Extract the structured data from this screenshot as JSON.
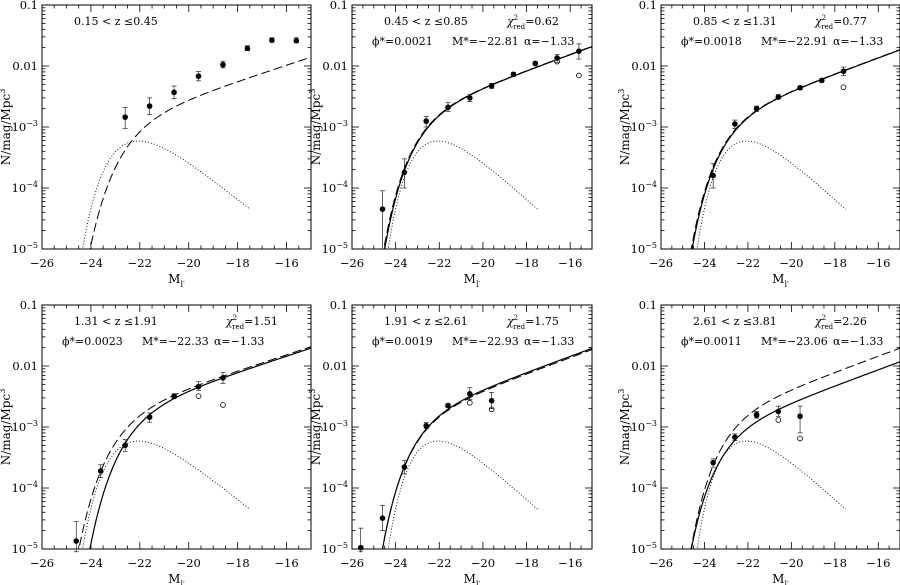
{
  "chart_data": [
    {
      "type": "scatter",
      "panel_label": "0.15 < z ≤0.45",
      "chi2": "",
      "params": "",
      "xlabel": "M_l'",
      "ylabel": "N/mag/Mpc^3",
      "xlim": [
        -26,
        -15
      ],
      "ylim_log10": [
        -5,
        -1
      ],
      "yscale": "log",
      "xticks": [
        "-26",
        "-24",
        "-22",
        "-20",
        "-18",
        "-16"
      ],
      "yticks": [
        "10^-5",
        "10^-4",
        "10^-3",
        "0.01",
        "0.1"
      ],
      "points_filled": [
        {
          "x": -22.6,
          "y": 0.00145,
          "lo": 0.00095,
          "hi": 0.0021
        },
        {
          "x": -21.6,
          "y": 0.0022,
          "lo": 0.0016,
          "hi": 0.003
        },
        {
          "x": -20.6,
          "y": 0.0037,
          "lo": 0.0029,
          "hi": 0.0047
        },
        {
          "x": -19.6,
          "y": 0.0068,
          "lo": 0.0057,
          "hi": 0.0081
        },
        {
          "x": -18.6,
          "y": 0.0105,
          "lo": 0.0093,
          "hi": 0.012
        },
        {
          "x": -17.6,
          "y": 0.0195,
          "lo": 0.0178,
          "hi": 0.0215
        },
        {
          "x": -16.6,
          "y": 0.0265,
          "lo": 0.0245,
          "hi": 0.029
        },
        {
          "x": -15.6,
          "y": 0.026,
          "lo": 0.024,
          "hi": 0.029
        }
      ],
      "points_open": [],
      "curves": {
        "solid": false,
        "dashed": [
          {
            "M": -22.4,
            "phi": 0.0016,
            "alpha": -1.33
          }
        ],
        "dotted_mstar": -22.3,
        "dotted_phi": 0.0017
      }
    },
    {
      "type": "scatter",
      "panel_label": "0.45 < z ≤0.85",
      "chi2": "0.62",
      "params": [
        "0.0021",
        "-22.81",
        "-1.33"
      ],
      "xlabel": "M_l'",
      "ylabel": "N/mag/Mpc^3",
      "xlim": [
        -26,
        -15
      ],
      "ylim_log10": [
        -5,
        -1
      ],
      "yscale": "log",
      "xticks": [
        "-26",
        "-24",
        "-22",
        "-20",
        "-18",
        "-16"
      ],
      "yticks": [
        "10^-5",
        "10^-4",
        "10^-3",
        "0.01",
        "0.1"
      ],
      "points_filled": [
        {
          "x": -24.6,
          "y": 4.5e-05,
          "lo": 1e-05,
          "hi": 9e-05
        },
        {
          "x": -23.6,
          "y": 0.00018,
          "lo": 0.0001,
          "hi": 0.0003
        },
        {
          "x": -22.6,
          "y": 0.00125,
          "lo": 0.001,
          "hi": 0.0015
        },
        {
          "x": -21.6,
          "y": 0.0021,
          "lo": 0.0018,
          "hi": 0.0025
        },
        {
          "x": -20.6,
          "y": 0.003,
          "lo": 0.0026,
          "hi": 0.0034
        },
        {
          "x": -19.6,
          "y": 0.0047,
          "lo": 0.0043,
          "hi": 0.0052
        },
        {
          "x": -18.6,
          "y": 0.0073,
          "lo": 0.0068,
          "hi": 0.0078
        },
        {
          "x": -17.6,
          "y": 0.011,
          "lo": 0.0103,
          "hi": 0.0118
        },
        {
          "x": -16.6,
          "y": 0.0135,
          "lo": 0.0115,
          "hi": 0.0155
        },
        {
          "x": -15.6,
          "y": 0.0175,
          "lo": 0.013,
          "hi": 0.023
        }
      ],
      "points_open": [
        {
          "x": -16.6,
          "y": 0.0118
        },
        {
          "x": -15.6,
          "y": 0.007
        }
      ],
      "curves": {
        "solid": true,
        "dashed": [
          {
            "M": -22.85,
            "phi": 0.0021,
            "alpha": -1.33
          }
        ],
        "dotted_mstar": -22.3,
        "dotted_phi": 0.0017
      }
    },
    {
      "type": "scatter",
      "panel_label": "0.85 < z ≤1.31",
      "chi2": "0.77",
      "params": [
        "0.0018",
        "-22.91",
        "-1.33"
      ],
      "xlabel": "M_l'",
      "ylabel": "N/mag/Mpc^3",
      "xlim": [
        -26,
        -15
      ],
      "ylim_log10": [
        -5,
        -1
      ],
      "yscale": "log",
      "xticks": [
        "-26",
        "-24",
        "-22",
        "-20",
        "-18",
        "-16"
      ],
      "yticks": [
        "10^-5",
        "10^-4",
        "10^-3",
        "0.01",
        "0.1"
      ],
      "points_filled": [
        {
          "x": -23.6,
          "y": 0.00016,
          "lo": 0.0001,
          "hi": 0.00025
        },
        {
          "x": -22.6,
          "y": 0.00112,
          "lo": 0.00095,
          "hi": 0.0013
        },
        {
          "x": -21.6,
          "y": 0.002,
          "lo": 0.0018,
          "hi": 0.0022
        },
        {
          "x": -20.6,
          "y": 0.0031,
          "lo": 0.0029,
          "hi": 0.0034
        },
        {
          "x": -19.6,
          "y": 0.0044,
          "lo": 0.0041,
          "hi": 0.0047
        },
        {
          "x": -18.6,
          "y": 0.0058,
          "lo": 0.0054,
          "hi": 0.0062
        },
        {
          "x": -17.6,
          "y": 0.0082,
          "lo": 0.007,
          "hi": 0.0096
        }
      ],
      "points_open": [
        {
          "x": -17.6,
          "y": 0.0045
        }
      ],
      "curves": {
        "solid": true,
        "dashed": [
          {
            "M": -22.95,
            "phi": 0.0018,
            "alpha": -1.33
          }
        ],
        "dotted_mstar": -22.3,
        "dotted_phi": 0.0017
      }
    },
    {
      "type": "scatter",
      "panel_label": "1.31 < z ≤1.91",
      "chi2": "1.51",
      "params": [
        "0.0023",
        "-22.33",
        "-1.33"
      ],
      "xlabel": "M_l'",
      "ylabel": "N/mag/Mpc^3",
      "xlim": [
        -26,
        -15
      ],
      "ylim_log10": [
        -5,
        -1
      ],
      "yscale": "log",
      "xticks": [
        "-26",
        "-24",
        "-22",
        "-20",
        "-18",
        "-16"
      ],
      "yticks": [
        "10^-5",
        "10^-4",
        "10^-3",
        "0.01",
        "0.1"
      ],
      "points_filled": [
        {
          "x": -24.6,
          "y": 1.35e-05,
          "lo": 9e-06,
          "hi": 2.8e-05
        },
        {
          "x": -23.6,
          "y": 0.00019,
          "lo": 0.00015,
          "hi": 0.00024
        },
        {
          "x": -22.6,
          "y": 0.0005,
          "lo": 0.0004,
          "hi": 0.00062
        },
        {
          "x": -21.6,
          "y": 0.00145,
          "lo": 0.0012,
          "hi": 0.0017
        },
        {
          "x": -20.6,
          "y": 0.0032,
          "lo": 0.0029,
          "hi": 0.0035
        },
        {
          "x": -19.6,
          "y": 0.0046,
          "lo": 0.004,
          "hi": 0.0055
        },
        {
          "x": -18.6,
          "y": 0.0064,
          "lo": 0.0052,
          "hi": 0.0078
        }
      ],
      "points_open": [
        {
          "x": -19.6,
          "y": 0.0032
        },
        {
          "x": -18.6,
          "y": 0.0023
        }
      ],
      "curves": {
        "solid": true,
        "dashed": [
          {
            "M": -22.8,
            "phi": 0.0021,
            "alpha": -1.33
          }
        ],
        "dotted_mstar": -22.3,
        "dotted_phi": 0.0017
      }
    },
    {
      "type": "scatter",
      "panel_label": "1.91 < z ≤2.61",
      "chi2": "1.75",
      "params": [
        "0.0019",
        "-22.93",
        "-1.33"
      ],
      "xlabel": "M_l'",
      "ylabel": "N/mag/Mpc^3",
      "xlim": [
        -26,
        -15
      ],
      "ylim_log10": [
        -5,
        -1
      ],
      "yscale": "log",
      "xticks": [
        "-26",
        "-24",
        "-22",
        "-20",
        "-18",
        "-16"
      ],
      "yticks": [
        "10^-5",
        "10^-4",
        "10^-3",
        "0.01",
        "0.1"
      ],
      "points_filled": [
        {
          "x": -25.6,
          "y": 1.05e-05,
          "lo": 9e-06,
          "hi": 2.2e-05
        },
        {
          "x": -24.6,
          "y": 3.2e-05,
          "lo": 2e-05,
          "hi": 5.2e-05
        },
        {
          "x": -23.6,
          "y": 0.00022,
          "lo": 0.00017,
          "hi": 0.00028
        },
        {
          "x": -22.6,
          "y": 0.00105,
          "lo": 0.00095,
          "hi": 0.00118
        },
        {
          "x": -21.6,
          "y": 0.00225,
          "lo": 0.0021,
          "hi": 0.0024
        },
        {
          "x": -20.6,
          "y": 0.0035,
          "lo": 0.0028,
          "hi": 0.0044
        },
        {
          "x": -19.6,
          "y": 0.0027,
          "lo": 0.002,
          "hi": 0.0037
        }
      ],
      "points_open": [
        {
          "x": -20.6,
          "y": 0.0025
        },
        {
          "x": -19.6,
          "y": 0.00195
        }
      ],
      "curves": {
        "solid": true,
        "dashed": [
          {
            "M": -22.95,
            "phi": 0.0018,
            "alpha": -1.33
          }
        ],
        "dotted_mstar": -22.3,
        "dotted_phi": 0.0017
      }
    },
    {
      "type": "scatter",
      "panel_label": "2.61 < z ≤3.81",
      "chi2": "2.26",
      "params": [
        "0.0011",
        "-23.06",
        "-1.33"
      ],
      "xlabel": "M_l'",
      "ylabel": "N/mag/Mpc^3",
      "xlim": [
        -26,
        -15
      ],
      "ylim_log10": [
        -5,
        -1
      ],
      "yscale": "log",
      "xticks": [
        "-26",
        "-24",
        "-22",
        "-20",
        "-18",
        "-16"
      ],
      "yticks": [
        "10^-5",
        "10^-4",
        "10^-3",
        "0.01",
        "0.1"
      ],
      "points_filled": [
        {
          "x": -23.6,
          "y": 0.00026,
          "lo": 0.00022,
          "hi": 0.0003
        },
        {
          "x": -22.6,
          "y": 0.00068,
          "lo": 0.0006,
          "hi": 0.00077
        },
        {
          "x": -21.6,
          "y": 0.0016,
          "lo": 0.0014,
          "hi": 0.0018
        },
        {
          "x": -20.6,
          "y": 0.0018,
          "lo": 0.0015,
          "hi": 0.0022
        },
        {
          "x": -19.6,
          "y": 0.0015,
          "lo": 0.0008,
          "hi": 0.0022
        }
      ],
      "points_open": [
        {
          "x": -21.6,
          "y": 0.00155
        },
        {
          "x": -20.6,
          "y": 0.0013
        },
        {
          "x": -19.6,
          "y": 0.00065
        }
      ],
      "curves": {
        "solid": true,
        "dashed": [
          {
            "M": -22.95,
            "phi": 0.0019,
            "alpha": -1.33
          }
        ],
        "dotted_mstar": -22.3,
        "dotted_phi": 0.0017
      }
    }
  ],
  "labels": {
    "chi_symbol": "χ",
    "chi_sub": "red",
    "chi_sup": "2",
    "phi_label": "ϕ*=",
    "mstar_label": "M*=",
    "alpha_label": "α="
  }
}
